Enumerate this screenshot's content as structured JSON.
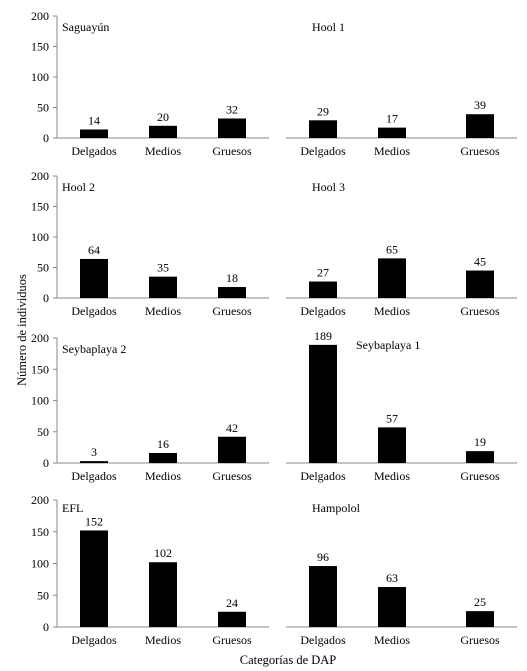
{
  "chart_data": [
    {
      "type": "bar",
      "title": "Saguayún",
      "categories": [
        "Delgados",
        "Medios",
        "Gruesos"
      ],
      "values": [
        14,
        20,
        32
      ],
      "ylim": [
        0,
        200
      ],
      "yticks": [
        "0",
        "50",
        "100",
        "150",
        "200"
      ]
    },
    {
      "type": "bar",
      "title": "Hool 1",
      "categories": [
        "Delgados",
        "Medios",
        "Gruesos"
      ],
      "values": [
        29,
        17,
        39
      ],
      "ylim": [
        0,
        200
      ]
    },
    {
      "type": "bar",
      "title": "Hool 2",
      "categories": [
        "Delgados",
        "Medios",
        "Gruesos"
      ],
      "values": [
        64,
        35,
        18
      ],
      "ylim": [
        0,
        200
      ],
      "yticks": [
        "0",
        "50",
        "100",
        "150",
        "200"
      ]
    },
    {
      "type": "bar",
      "title": "Hool 3",
      "categories": [
        "Delgados",
        "Medios",
        "Gruesos"
      ],
      "values": [
        27,
        65,
        45
      ],
      "ylim": [
        0,
        200
      ]
    },
    {
      "type": "bar",
      "title": "Seybaplaya 2",
      "categories": [
        "Delgados",
        "Medios",
        "Gruesos"
      ],
      "values": [
        3,
        16,
        42
      ],
      "ylim": [
        0,
        200
      ],
      "yticks": [
        "0",
        "50",
        "100",
        "150",
        "200"
      ]
    },
    {
      "type": "bar",
      "title": "Seybaplaya 1",
      "categories": [
        "Delgados",
        "Medios",
        "Gruesos"
      ],
      "values": [
        189,
        57,
        19
      ],
      "ylim": [
        0,
        200
      ]
    },
    {
      "type": "bar",
      "title": "EFL",
      "categories": [
        "Delgados",
        "Medios",
        "Gruesos"
      ],
      "values": [
        152,
        102,
        24
      ],
      "ylim": [
        0,
        200
      ],
      "yticks": [
        "0",
        "50",
        "100",
        "150",
        "200"
      ]
    },
    {
      "type": "bar",
      "title": "Hampolol",
      "categories": [
        "Delgados",
        "Medios",
        "Gruesos"
      ],
      "values": [
        96,
        63,
        25
      ],
      "ylim": [
        0,
        200
      ]
    }
  ],
  "ylabel": "Número de individuos",
  "xlabel": "Categorías de DAP"
}
